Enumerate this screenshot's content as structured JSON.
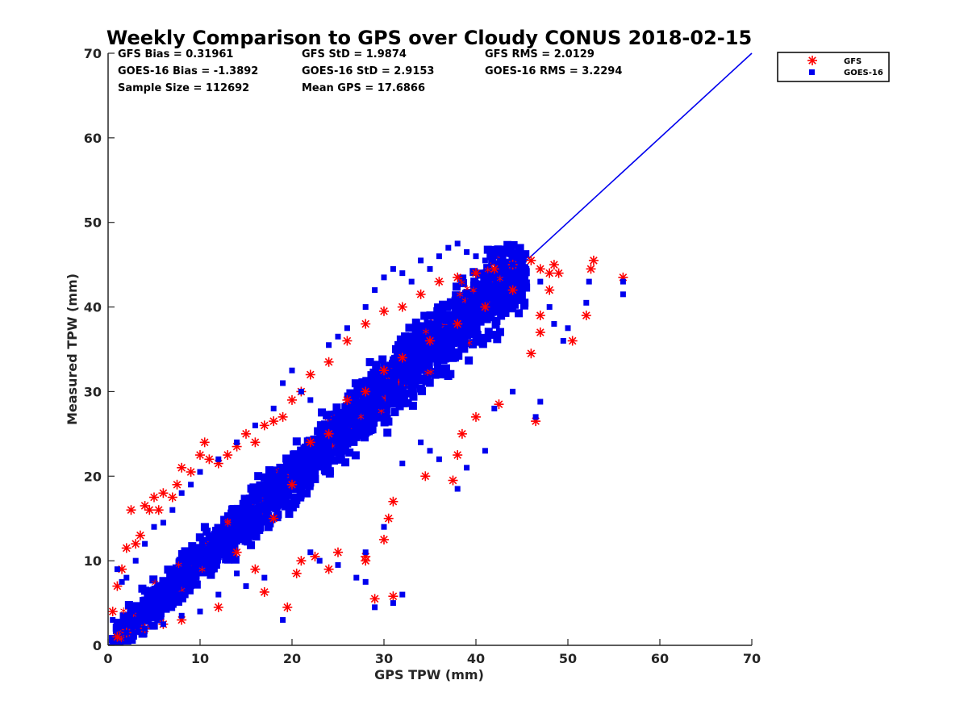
{
  "chart_data": {
    "type": "scatter",
    "title": "Weekly Comparison to GPS over Cloudy CONUS 2018-02-15",
    "xlabel": "GPS TPW (mm)",
    "ylabel": "Measured TPW (mm)",
    "xlim": [
      0,
      70
    ],
    "ylim": [
      0,
      70
    ],
    "xticks": [
      "0",
      "10",
      "20",
      "30",
      "40",
      "50",
      "60",
      "70"
    ],
    "yticks": [
      "0",
      "10",
      "20",
      "30",
      "40",
      "50",
      "60",
      "70"
    ],
    "grid": false,
    "legend_position": "outside-top-right",
    "stats": {
      "gfs_bias": "GFS Bias = 0.31961",
      "goes_bias": "GOES-16 Bias = -1.3892",
      "sample_size": "Sample Size = 112692",
      "gfs_std": "GFS StD = 1.9874",
      "goes_std": "GOES-16 StD = 2.9153",
      "mean_gps": "Mean GPS = 17.6866",
      "gfs_rms": "GFS RMS = 2.0129",
      "goes_rms": "GOES-16 RMS = 3.2294"
    },
    "reference_line": {
      "x": [
        0,
        70
      ],
      "y": [
        0,
        70
      ],
      "color": "#0000ee"
    },
    "series": [
      {
        "name": "GFS",
        "marker": "asterisk",
        "color": "#ff0000",
        "points": [
          [
            0.5,
            4
          ],
          [
            1,
            7
          ],
          [
            1.5,
            9
          ],
          [
            2,
            11.5
          ],
          [
            2.5,
            16
          ],
          [
            3,
            12
          ],
          [
            3.5,
            13
          ],
          [
            4,
            16.5
          ],
          [
            4.5,
            16
          ],
          [
            5,
            17.5
          ],
          [
            5.5,
            16
          ],
          [
            6,
            18
          ],
          [
            7,
            17.5
          ],
          [
            7.5,
            19
          ],
          [
            8,
            21
          ],
          [
            9,
            20.5
          ],
          [
            10,
            22.5
          ],
          [
            10.5,
            24
          ],
          [
            11,
            22
          ],
          [
            12,
            21.5
          ],
          [
            13,
            22.5
          ],
          [
            14,
            23.5
          ],
          [
            15,
            25
          ],
          [
            16,
            24
          ],
          [
            17,
            26
          ],
          [
            18,
            26.5
          ],
          [
            19,
            27
          ],
          [
            20,
            29
          ],
          [
            21,
            30
          ],
          [
            22,
            32
          ],
          [
            24,
            33.5
          ],
          [
            26,
            36
          ],
          [
            28,
            38
          ],
          [
            30,
            39.5
          ],
          [
            32,
            40
          ],
          [
            34,
            41.5
          ],
          [
            36,
            43
          ],
          [
            38,
            43.5
          ],
          [
            40,
            44
          ],
          [
            42,
            44.5
          ],
          [
            44,
            45
          ],
          [
            46,
            45.5
          ],
          [
            47,
            44.5
          ],
          [
            48,
            44
          ],
          [
            48.5,
            45
          ],
          [
            49,
            44
          ],
          [
            47,
            39
          ],
          [
            47,
            37
          ],
          [
            46,
            34.5
          ],
          [
            48,
            42
          ],
          [
            50.5,
            36
          ],
          [
            52,
            39
          ],
          [
            52.5,
            44.5
          ],
          [
            52.8,
            45.5
          ],
          [
            56,
            43.5
          ],
          [
            46.5,
            26.5
          ],
          [
            42.5,
            28.5
          ],
          [
            40,
            27
          ],
          [
            38.5,
            25
          ],
          [
            38,
            22.5
          ],
          [
            37.5,
            19.5
          ],
          [
            34.5,
            20
          ],
          [
            31,
            17
          ],
          [
            30.5,
            15
          ],
          [
            30,
            12.5
          ],
          [
            28,
            10.5
          ],
          [
            28,
            10
          ],
          [
            29,
            5.5
          ],
          [
            31,
            5.8
          ],
          [
            25,
            11
          ],
          [
            24,
            9
          ],
          [
            22.5,
            10.5
          ],
          [
            21,
            10
          ],
          [
            20.5,
            8.5
          ],
          [
            19.5,
            4.5
          ],
          [
            17,
            6.3
          ],
          [
            16,
            9
          ],
          [
            14,
            11
          ],
          [
            12,
            4.5
          ],
          [
            8,
            3
          ],
          [
            6,
            2.5
          ],
          [
            4,
            2
          ],
          [
            2,
            1.5
          ],
          [
            1,
            1
          ],
          [
            18,
            15
          ],
          [
            20,
            19
          ],
          [
            22,
            24
          ],
          [
            24,
            25
          ],
          [
            26,
            29
          ],
          [
            28,
            30
          ],
          [
            30,
            32.5
          ],
          [
            32,
            34
          ],
          [
            35,
            36
          ],
          [
            38,
            38
          ],
          [
            41,
            40
          ],
          [
            44,
            42
          ]
        ]
      },
      {
        "name": "GOES-16",
        "marker": "square",
        "color": "#0000ee",
        "points": [
          [
            1,
            9
          ],
          [
            1.5,
            7.5
          ],
          [
            2,
            8
          ],
          [
            3,
            10
          ],
          [
            4,
            12
          ],
          [
            5,
            14
          ],
          [
            6,
            14.5
          ],
          [
            7,
            16
          ],
          [
            8,
            18
          ],
          [
            9,
            19
          ],
          [
            10,
            20.5
          ],
          [
            12,
            22
          ],
          [
            14,
            24
          ],
          [
            16,
            26
          ],
          [
            18,
            28
          ],
          [
            19,
            31
          ],
          [
            20,
            32.5
          ],
          [
            21,
            30
          ],
          [
            22,
            29
          ],
          [
            24,
            35.5
          ],
          [
            25,
            36.5
          ],
          [
            26,
            37.5
          ],
          [
            28,
            40
          ],
          [
            29,
            42
          ],
          [
            30,
            43.5
          ],
          [
            31,
            44.5
          ],
          [
            32,
            44
          ],
          [
            33,
            43
          ],
          [
            34,
            45.5
          ],
          [
            35,
            44.5
          ],
          [
            36,
            46
          ],
          [
            37,
            47
          ],
          [
            38,
            47.5
          ],
          [
            39,
            46.5
          ],
          [
            40,
            46
          ],
          [
            41,
            45.5
          ],
          [
            42,
            46
          ],
          [
            44,
            45
          ],
          [
            45.5,
            44.5
          ],
          [
            47,
            43
          ],
          [
            48,
            40
          ],
          [
            48.5,
            38
          ],
          [
            49.5,
            36
          ],
          [
            50,
            37.5
          ],
          [
            52,
            40.5
          ],
          [
            52.3,
            43
          ],
          [
            56,
            41.5
          ],
          [
            56,
            43
          ],
          [
            47,
            28.8
          ],
          [
            46.5,
            27
          ],
          [
            44,
            30
          ],
          [
            42,
            28
          ],
          [
            41,
            23
          ],
          [
            39,
            21
          ],
          [
            38,
            18.5
          ],
          [
            36,
            22
          ],
          [
            35,
            23
          ],
          [
            34,
            24
          ],
          [
            32,
            21.5
          ],
          [
            30,
            14
          ],
          [
            28,
            11
          ],
          [
            28,
            7.5
          ],
          [
            27,
            8
          ],
          [
            29,
            4.5
          ],
          [
            31,
            5
          ],
          [
            32,
            6
          ],
          [
            25,
            9.5
          ],
          [
            23,
            10
          ],
          [
            22,
            11
          ],
          [
            19,
            3
          ],
          [
            17,
            8
          ],
          [
            15,
            7
          ],
          [
            14,
            8.5
          ],
          [
            12,
            6
          ],
          [
            10,
            4
          ],
          [
            8,
            3.5
          ],
          [
            6,
            2.5
          ],
          [
            4,
            2
          ],
          [
            2,
            1.5
          ],
          [
            1,
            2
          ],
          [
            0.5,
            3
          ],
          [
            3,
            3
          ],
          [
            5,
            4
          ],
          [
            7,
            5
          ],
          [
            9,
            7
          ],
          [
            11,
            9
          ],
          [
            13,
            11
          ],
          [
            15,
            13
          ],
          [
            17,
            15
          ],
          [
            19,
            17
          ],
          [
            21,
            19
          ],
          [
            23,
            21
          ],
          [
            25,
            23
          ],
          [
            27,
            25
          ],
          [
            29,
            27
          ],
          [
            31,
            29
          ],
          [
            33,
            31
          ],
          [
            35,
            33
          ],
          [
            37,
            35
          ],
          [
            39,
            37
          ],
          [
            41,
            39
          ],
          [
            43,
            41
          ],
          [
            45,
            43
          ]
        ]
      }
    ]
  }
}
